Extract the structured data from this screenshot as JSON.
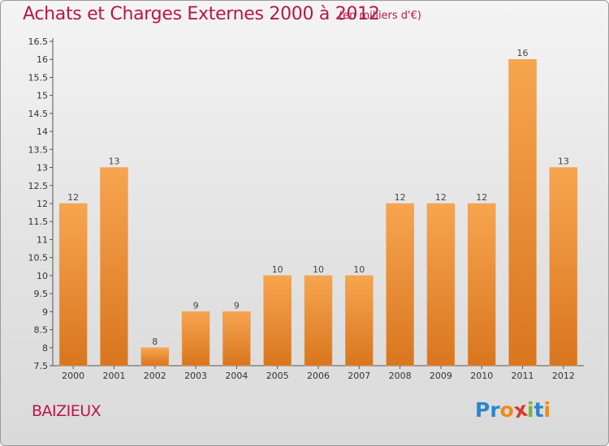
{
  "header": {
    "title": "Achats et Charges Externes 2000 à 2012",
    "subtitle": "(en milliers d'€)"
  },
  "footer": {
    "commune": "BAIZIEUX",
    "logo_letters": [
      "P",
      "r",
      "o",
      "x",
      "i",
      "t",
      "i"
    ],
    "logo_colors": [
      "#2b87c9",
      "#2b87c9",
      "#f08a1c",
      "#d93a2b",
      "#7cb342",
      "#2b87c9",
      "#f08a1c"
    ]
  },
  "chart_data": {
    "type": "bar",
    "title": "Achats et Charges Externes 2000 à 2012",
    "subtitle": "(en milliers d'€)",
    "categories": [
      "2000",
      "2001",
      "2002",
      "2003",
      "2004",
      "2005",
      "2006",
      "2007",
      "2008",
      "2009",
      "2010",
      "2011",
      "2012"
    ],
    "values": [
      12,
      13,
      8,
      9,
      9,
      10,
      10,
      10,
      12,
      12,
      12,
      16,
      13
    ],
    "data_labels": [
      "12",
      "13",
      "8",
      "9",
      "9",
      "10",
      "10",
      "10",
      "12",
      "12",
      "12",
      "16",
      "13"
    ],
    "ylim": [
      7.5,
      16.5
    ],
    "yticks": [
      7.5,
      8,
      8.5,
      9,
      9.5,
      10,
      10.5,
      11,
      11.5,
      12,
      12.5,
      13,
      13.5,
      14,
      14.5,
      15,
      15.5,
      16,
      16.5
    ],
    "ytick_labels": [
      "7.5",
      "8",
      "8.5",
      "9",
      "9.5",
      "10",
      "10.5",
      "11",
      "11.5",
      "12",
      "12.5",
      "13",
      "13.5",
      "14",
      "14.5",
      "15",
      "15.5",
      "16",
      "16.5"
    ],
    "xlabel": "",
    "ylabel": "",
    "grid": false,
    "bar_color_top": "#f7a54f",
    "bar_color_bottom": "#d9761f"
  }
}
